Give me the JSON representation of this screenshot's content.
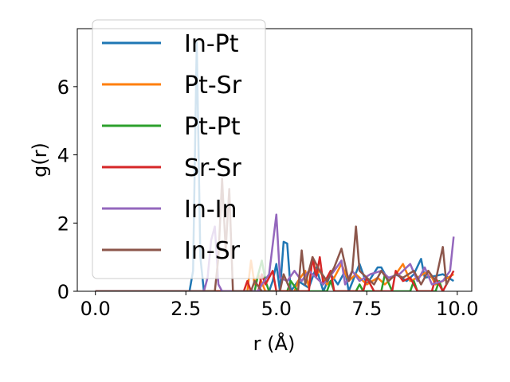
{
  "chart_data": {
    "type": "line",
    "xlabel": "r (Å)",
    "ylabel": "g(r)",
    "xlim": [
      -0.5,
      10.4
    ],
    "ylim": [
      0,
      7.7
    ],
    "xticks": [
      0.0,
      2.5,
      5.0,
      7.5,
      10.0
    ],
    "xtick_labels": [
      "0.0",
      "2.5",
      "5.0",
      "7.5",
      "10.0"
    ],
    "yticks": [
      0,
      2,
      4,
      6
    ],
    "ytick_labels": [
      "0",
      "2",
      "4",
      "6"
    ],
    "grid": false,
    "legend_placement": "top-left",
    "series": [
      {
        "name": "In-Pt",
        "color": "#1f77b4",
        "points": [
          [
            0,
            0
          ],
          [
            2.6,
            0
          ],
          [
            2.7,
            0.6
          ],
          [
            2.8,
            7.3
          ],
          [
            2.9,
            1.0
          ],
          [
            3.0,
            0
          ],
          [
            4.8,
            0
          ],
          [
            4.9,
            0.3
          ],
          [
            5.0,
            0.8
          ],
          [
            5.1,
            0
          ],
          [
            5.2,
            1.45
          ],
          [
            5.3,
            1.4
          ],
          [
            5.4,
            0
          ],
          [
            5.6,
            0.3
          ],
          [
            5.9,
            0.1
          ],
          [
            6.1,
            0.7
          ],
          [
            6.3,
            0
          ],
          [
            6.5,
            0.5
          ],
          [
            6.7,
            0.2
          ],
          [
            6.9,
            0.6
          ],
          [
            7.0,
            0
          ],
          [
            7.3,
            0.8
          ],
          [
            7.5,
            0.2
          ],
          [
            7.8,
            0.7
          ],
          [
            7.9,
            0.7
          ],
          [
            8.1,
            0.3
          ],
          [
            8.3,
            0.5
          ],
          [
            8.6,
            0.3
          ],
          [
            8.8,
            0.5
          ],
          [
            9.0,
            0.95
          ],
          [
            9.1,
            0.4
          ],
          [
            9.4,
            0.45
          ],
          [
            9.6,
            0.5
          ],
          [
            9.9,
            0.3
          ]
        ]
      },
      {
        "name": "Pt-Sr",
        "color": "#ff7f0e",
        "points": [
          [
            0,
            0
          ],
          [
            4.2,
            0
          ],
          [
            4.3,
            0.9
          ],
          [
            4.4,
            0.2
          ],
          [
            4.5,
            0.5
          ],
          [
            4.7,
            0
          ],
          [
            5.5,
            0
          ],
          [
            5.6,
            0.3
          ],
          [
            5.8,
            0.6
          ],
          [
            5.9,
            0.1
          ],
          [
            6.0,
            1.0
          ],
          [
            6.1,
            0.5
          ],
          [
            6.2,
            0.6
          ],
          [
            6.4,
            0.2
          ],
          [
            6.6,
            0.4
          ],
          [
            6.8,
            0.8
          ],
          [
            7.0,
            0.3
          ],
          [
            7.2,
            0.5
          ],
          [
            7.5,
            0.2
          ],
          [
            7.8,
            0.4
          ],
          [
            8.0,
            0.2
          ],
          [
            8.3,
            0.5
          ],
          [
            8.5,
            0.8
          ],
          [
            8.7,
            0.3
          ],
          [
            8.9,
            0.4
          ],
          [
            9.2,
            0.6
          ],
          [
            9.4,
            0.2
          ],
          [
            9.6,
            0.3
          ],
          [
            9.9,
            0.5
          ]
        ]
      },
      {
        "name": "Pt-Pt",
        "color": "#2ca02c",
        "points": [
          [
            0,
            0
          ],
          [
            4.4,
            0
          ],
          [
            4.5,
            0.5
          ],
          [
            4.6,
            0.9
          ],
          [
            4.7,
            0.3
          ],
          [
            4.8,
            0
          ],
          [
            5.3,
            0
          ],
          [
            5.4,
            0.3
          ],
          [
            5.6,
            0
          ],
          [
            6.4,
            0
          ],
          [
            6.5,
            0.3
          ],
          [
            6.6,
            0
          ],
          [
            7.2,
            0
          ],
          [
            7.3,
            0.2
          ],
          [
            7.4,
            0
          ],
          [
            7.9,
            0
          ],
          [
            8.0,
            0.5
          ],
          [
            8.2,
            0
          ],
          [
            8.7,
            0
          ],
          [
            8.8,
            0.3
          ],
          [
            8.9,
            0
          ],
          [
            9.4,
            0
          ],
          [
            9.5,
            0.3
          ],
          [
            9.6,
            0
          ]
        ]
      },
      {
        "name": "Sr-Sr",
        "color": "#d62728",
        "points": [
          [
            0,
            0
          ],
          [
            4.1,
            0
          ],
          [
            4.2,
            0.3
          ],
          [
            4.3,
            0
          ],
          [
            4.5,
            0
          ],
          [
            4.6,
            0.5
          ],
          [
            4.7,
            0.2
          ],
          [
            4.9,
            0.6
          ],
          [
            5.0,
            0
          ],
          [
            5.9,
            0
          ],
          [
            6.0,
            1.0
          ],
          [
            6.1,
            0.4
          ],
          [
            6.2,
            1.0
          ],
          [
            6.3,
            0.2
          ],
          [
            6.5,
            0.6
          ],
          [
            6.6,
            0
          ],
          [
            7.4,
            0
          ],
          [
            7.5,
            0.4
          ],
          [
            7.7,
            0
          ],
          [
            8.2,
            0
          ],
          [
            8.3,
            0.6
          ],
          [
            8.5,
            0.3
          ],
          [
            8.7,
            0.4
          ],
          [
            8.9,
            0
          ],
          [
            9.3,
            0
          ],
          [
            9.4,
            0.4
          ],
          [
            9.6,
            0
          ],
          [
            9.9,
            0.6
          ]
        ]
      },
      {
        "name": "In-In",
        "color": "#9467bd",
        "points": [
          [
            0,
            0
          ],
          [
            3.0,
            0
          ],
          [
            3.1,
            0.4
          ],
          [
            3.2,
            1.5
          ],
          [
            3.3,
            1.9
          ],
          [
            3.4,
            0.2
          ],
          [
            3.5,
            0
          ],
          [
            4.5,
            0
          ],
          [
            4.6,
            0.2
          ],
          [
            4.8,
            0.5
          ],
          [
            5.0,
            2.25
          ],
          [
            5.1,
            0.4
          ],
          [
            5.3,
            0.3
          ],
          [
            5.5,
            0.6
          ],
          [
            5.7,
            0.3
          ],
          [
            5.9,
            0.6
          ],
          [
            6.1,
            0.4
          ],
          [
            6.3,
            0.2
          ],
          [
            6.6,
            0.6
          ],
          [
            6.8,
            0.9
          ],
          [
            6.9,
            0.2
          ],
          [
            7.1,
            0.6
          ],
          [
            7.3,
            0.3
          ],
          [
            7.6,
            0.5
          ],
          [
            7.9,
            0.6
          ],
          [
            8.1,
            0.4
          ],
          [
            8.4,
            0.5
          ],
          [
            8.7,
            0.8
          ],
          [
            8.9,
            0.3
          ],
          [
            9.1,
            0.7
          ],
          [
            9.3,
            0.2
          ],
          [
            9.6,
            0.3
          ],
          [
            9.8,
            0.6
          ],
          [
            9.9,
            1.6
          ]
        ]
      },
      {
        "name": "In-Sr",
        "color": "#8c564b",
        "points": [
          [
            0,
            0
          ],
          [
            3.3,
            0
          ],
          [
            3.4,
            1.0
          ],
          [
            3.5,
            3.3
          ],
          [
            3.6,
            1.2
          ],
          [
            3.7,
            3.0
          ],
          [
            3.8,
            0
          ],
          [
            4.3,
            0
          ],
          [
            4.4,
            0.3
          ],
          [
            4.6,
            0
          ],
          [
            5.1,
            0
          ],
          [
            5.2,
            0.5
          ],
          [
            5.4,
            0
          ],
          [
            5.6,
            0
          ],
          [
            5.7,
            1.2
          ],
          [
            5.8,
            0.2
          ],
          [
            6.0,
            1.0
          ],
          [
            6.2,
            0.6
          ],
          [
            6.4,
            0.3
          ],
          [
            6.6,
            0.7
          ],
          [
            6.8,
            1.25
          ],
          [
            7.0,
            0.3
          ],
          [
            7.1,
            0.6
          ],
          [
            7.2,
            1.9
          ],
          [
            7.3,
            0.6
          ],
          [
            7.5,
            0.4
          ],
          [
            7.7,
            0.2
          ],
          [
            7.9,
            0.6
          ],
          [
            8.1,
            0.3
          ],
          [
            8.3,
            0.5
          ],
          [
            8.5,
            0.4
          ],
          [
            8.8,
            0.6
          ],
          [
            9.0,
            0.2
          ],
          [
            9.2,
            0.6
          ],
          [
            9.4,
            0.3
          ],
          [
            9.6,
            1.3
          ],
          [
            9.7,
            0.2
          ],
          [
            9.8,
            0.4
          ]
        ]
      }
    ]
  }
}
